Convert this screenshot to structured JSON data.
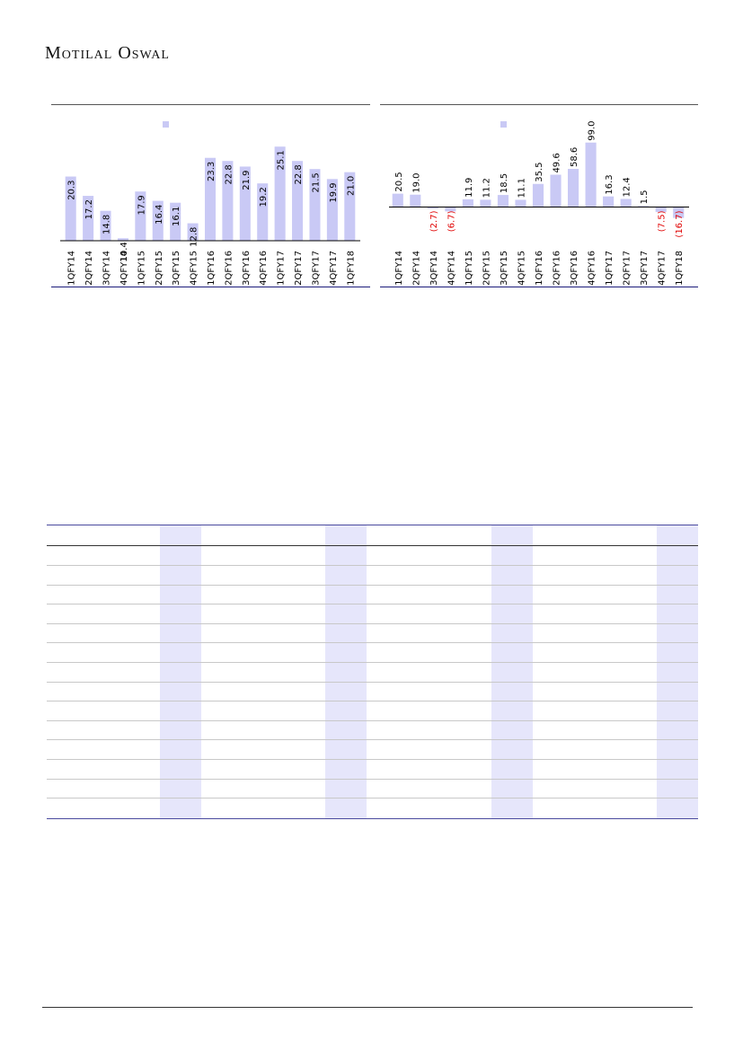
{
  "header": {
    "logo_text": "Motilal Oswal"
  },
  "colors": {
    "bar": "#c9c9f5",
    "negative_label": "#e00000",
    "axis": "#000000"
  },
  "chart_data": [
    {
      "type": "bar",
      "title": "",
      "categories": [
        "1QFY14",
        "2QFY14",
        "3QFY14",
        "4QFY14",
        "1QFY15",
        "2QFY15",
        "3QFY15",
        "4QFY15",
        "1QFY16",
        "2QFY16",
        "3QFY16",
        "4QFY16",
        "1QFY17",
        "2QFY17",
        "3QFY17",
        "4QFY17",
        "1QFY18"
      ],
      "values": [
        20.3,
        17.2,
        14.8,
        10.4,
        17.9,
        16.4,
        16.1,
        12.8,
        23.3,
        22.8,
        21.9,
        19.2,
        25.1,
        22.8,
        21.5,
        19.9,
        21.0
      ],
      "labels": [
        "20.3",
        "17.2",
        "14.8",
        "10.4",
        "17.9",
        "16.4",
        "16.1",
        "12.8",
        "23.3",
        "22.8",
        "21.9",
        "19.2",
        "25.1",
        "22.8",
        "21.5",
        "19.9",
        "21.0"
      ],
      "ylim": [
        10,
        26
      ],
      "legend": "top-center",
      "grid": false
    },
    {
      "type": "bar",
      "title": "",
      "categories": [
        "1QFY14",
        "2QFY14",
        "3QFY14",
        "4QFY14",
        "1QFY15",
        "2QFY15",
        "3QFY15",
        "4QFY15",
        "1QFY16",
        "2QFY16",
        "3QFY16",
        "4QFY16",
        "1QFY17",
        "2QFY17",
        "3QFY17",
        "4QFY17",
        "1QFY18"
      ],
      "values": [
        20.5,
        19.0,
        -2.7,
        -6.7,
        11.9,
        11.2,
        18.5,
        11.1,
        35.5,
        49.6,
        58.6,
        99.0,
        16.3,
        12.4,
        1.5,
        -7.5,
        -16.7
      ],
      "labels": [
        "20.5",
        "19.0",
        "(2.7)",
        "(6.7)",
        "11.9",
        "11.2",
        "18.5",
        "11.1",
        "35.5",
        "49.6",
        "58.6",
        "99.0",
        "16.3",
        "12.4",
        "1.5",
        "(7.5)",
        "(16.7)"
      ],
      "ylim": [
        -20,
        100
      ],
      "legend": "top-center",
      "grid": false
    }
  ],
  "table": {
    "rows": 14,
    "shaded_columns": 4
  }
}
